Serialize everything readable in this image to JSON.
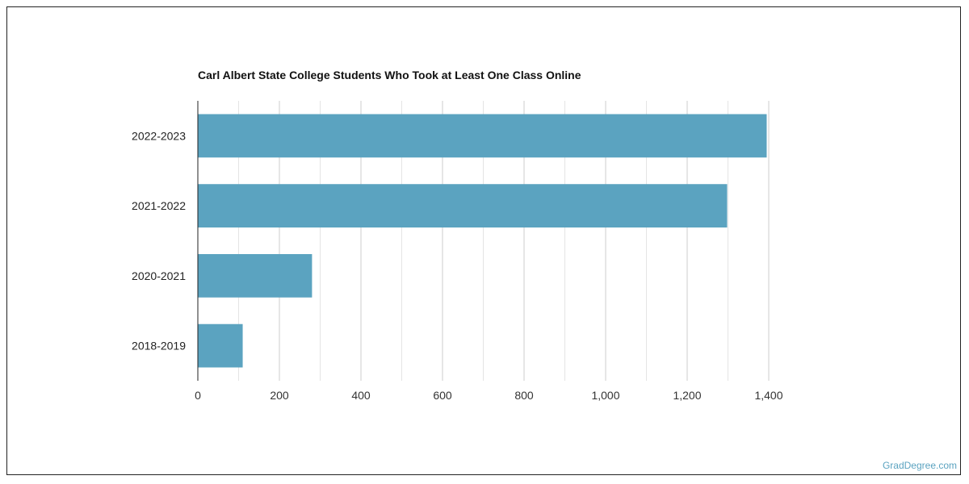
{
  "chart_data": {
    "type": "bar",
    "orientation": "horizontal",
    "title": "Carl Albert State College Students Who Took at Least One Class Online",
    "categories": [
      "2022-2023",
      "2021-2022",
      "2020-2021",
      "2018-2019"
    ],
    "values": [
      1395,
      1298,
      280,
      110
    ],
    "xlim": [
      0,
      1400
    ],
    "x_ticks": [
      0,
      200,
      400,
      600,
      800,
      1000,
      1200,
      1400
    ],
    "x_tick_labels": [
      "0",
      "200",
      "400",
      "600",
      "800",
      "1,000",
      "1,200",
      "1,400"
    ],
    "grid": true,
    "bar_color": "#5ba3c0"
  },
  "credit": "GradDegree.com"
}
